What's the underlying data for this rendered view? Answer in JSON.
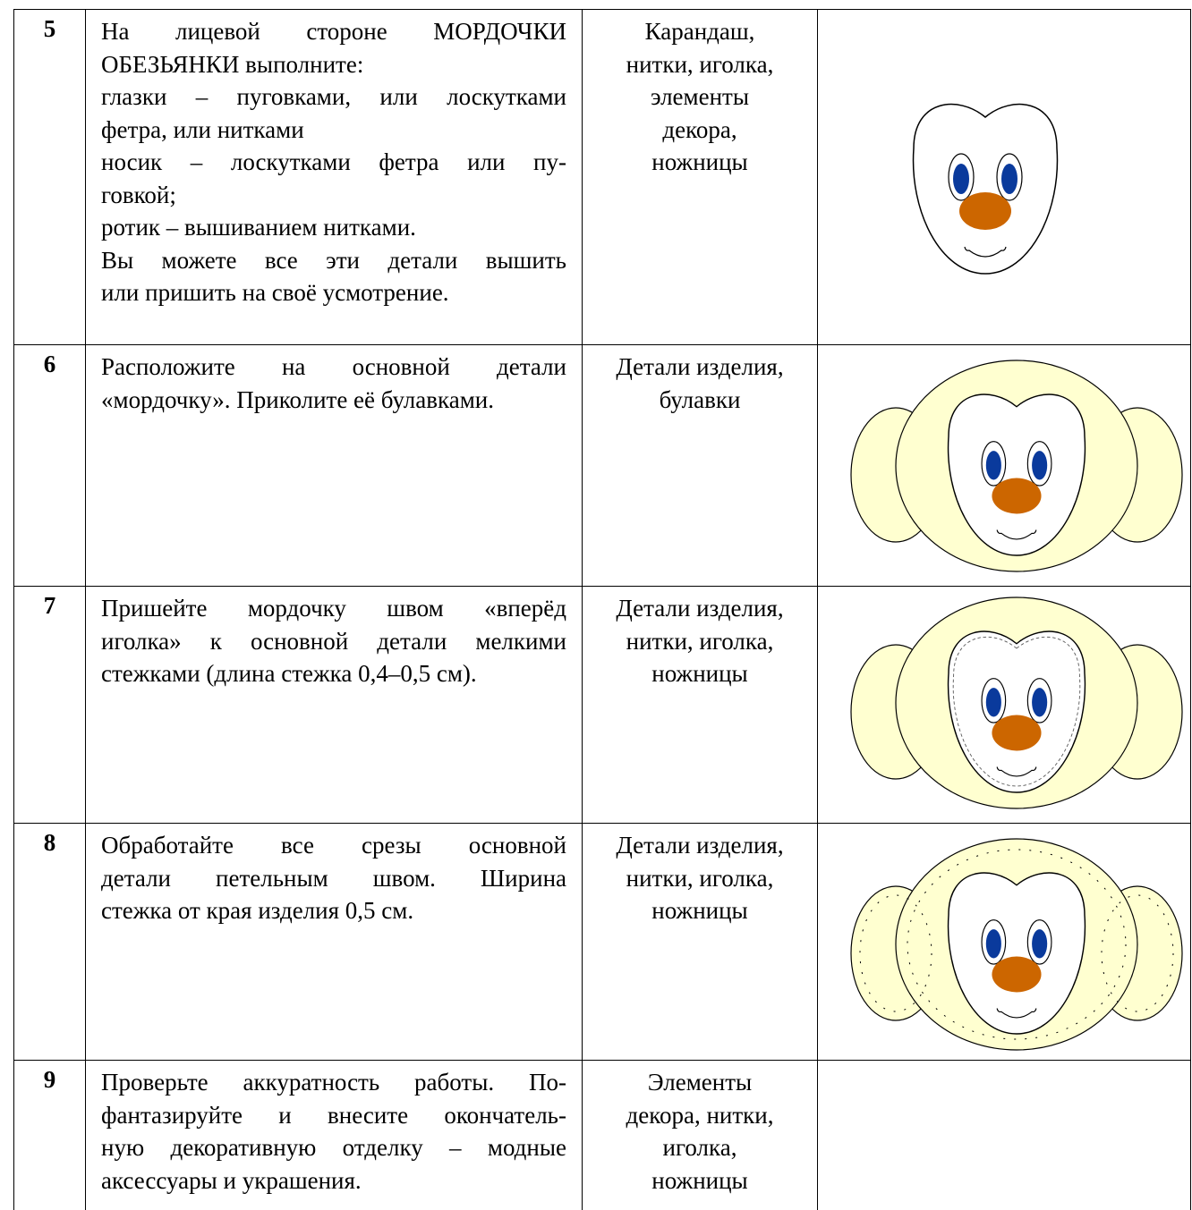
{
  "table": {
    "rows": [
      {
        "number": "5",
        "steps": [
          "На лицевой стороне МОРДОЧКИ",
          "ОБЕЗЬЯНКИ выполните:",
          "глазки – пуговками, или лоскутками",
          "фетра, или нитками",
          "носик – лоскутками фетра или пу-",
          "говкой;",
          "ротик – вышиванием нитками.",
          "Вы можете все эти детали вышить",
          "или пришить на своё усмотрение."
        ],
        "materials": [
          "Карандаш,",
          "нитки, иголка,",
          "элементы",
          "декора,",
          "ножницы"
        ]
      },
      {
        "number": "6",
        "steps": [
          "Расположите на основной детали",
          "«мордочку». Приколите её булавками."
        ],
        "materials": [
          "Детали изделия,",
          "булавки"
        ]
      },
      {
        "number": "7",
        "steps": [
          "Пришейте мордочку швом «вперёд",
          "иголка» к основной детали мелкими",
          "стежками (длина стежка 0,4–0,5 см)."
        ],
        "materials": [
          "Детали изделия,",
          "нитки, иголка,",
          "ножницы"
        ]
      },
      {
        "number": "8",
        "steps": [
          "Обработайте все срезы основной",
          "детали петельным швом. Ширина",
          "стежка от края изделия 0,5 см."
        ],
        "materials": [
          "Детали изделия,",
          "нитки, иголка,",
          "ножницы"
        ]
      },
      {
        "number": "9",
        "steps": [
          "Проверьте аккуратность работы. По-",
          "фантазируйте и внесите окончатель-",
          "ную декоративную отделку – модные",
          "аксессуары и украшения."
        ],
        "materials": [
          "Элементы",
          "декора, нитки,",
          "иголка,",
          "ножницы"
        ]
      }
    ]
  }
}
